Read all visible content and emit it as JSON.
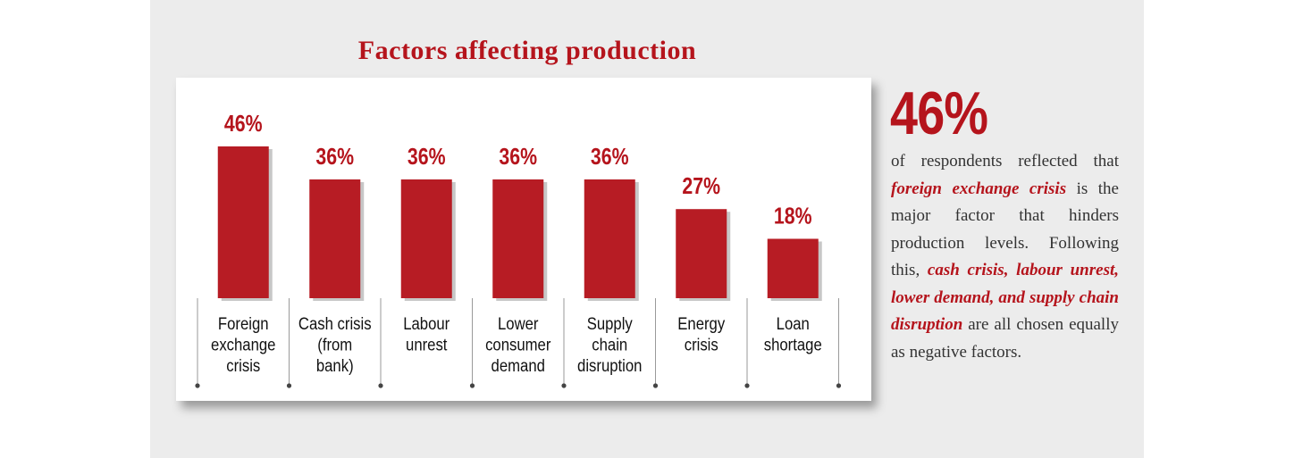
{
  "title": "Factors affecting production",
  "chart_data": {
    "type": "bar",
    "title": "Factors affecting production",
    "categories": [
      [
        "Foreign",
        "exchange",
        "crisis"
      ],
      [
        "Cash crisis",
        "(from",
        "bank)"
      ],
      [
        "Labour",
        "unrest"
      ],
      [
        "Lower",
        "consumer",
        "demand"
      ],
      [
        "Supply",
        "chain",
        "disruption"
      ],
      [
        "Energy",
        "crisis"
      ],
      [
        "Loan",
        "shortage"
      ]
    ],
    "values": [
      46,
      36,
      36,
      36,
      36,
      27,
      18
    ],
    "value_labels": [
      "46%",
      "36%",
      "36%",
      "36%",
      "36%",
      "27%",
      "18%"
    ],
    "unit": "%",
    "ylim": [
      0,
      46
    ]
  },
  "callout": {
    "value": "46%",
    "text_1": "of respondents reflected that ",
    "highlight_1": "foreign exchange crisis",
    "text_2": " is the major factor that hinders production levels. Following this, ",
    "highlight_2": "cash crisis, labour unrest, lower demand, and supply chain disruption",
    "text_3": " are all chosen equally as negative factors."
  },
  "colors": {
    "accent": "#b5141c",
    "bar": "#b71c24",
    "text": "#333333",
    "background": "#ececec"
  }
}
